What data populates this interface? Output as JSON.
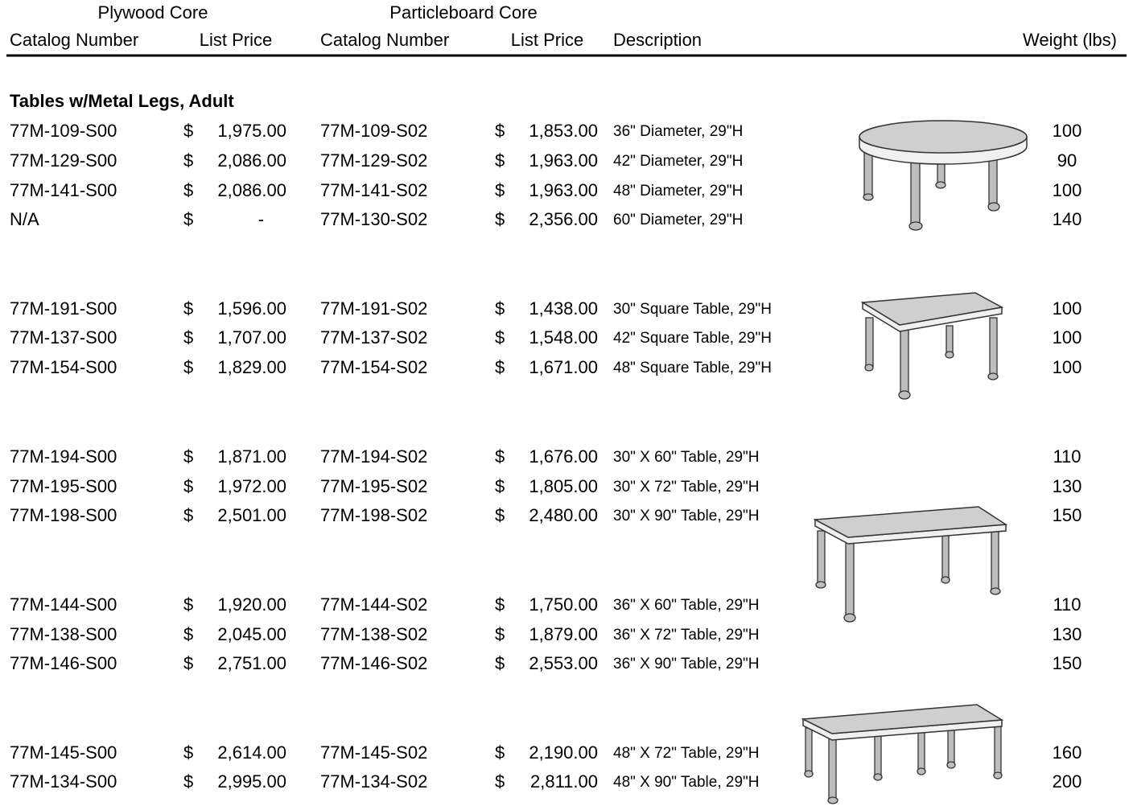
{
  "header": {
    "groups": [
      "Plywood Core",
      "Particleboard Core"
    ],
    "columns": [
      "Catalog Number",
      "List Price",
      "Catalog Number",
      "List Price",
      "Description",
      "Weight (lbs)"
    ]
  },
  "section": {
    "title": "Tables w/Metal Legs, Adult",
    "rows": [
      {
        "plywood_catalog": "77M-109-S00",
        "plywood_currency": "$",
        "plywood_price": "1,975.00",
        "particle_catalog": "77M-109-S02",
        "particle_currency": "$",
        "particle_price": "1,853.00",
        "description": "36\" Diameter, 29\"H",
        "weight": 100
      },
      {
        "plywood_catalog": "77M-129-S00",
        "plywood_currency": "$",
        "plywood_price": "2,086.00",
        "particle_catalog": "77M-129-S02",
        "particle_currency": "$",
        "particle_price": "1,963.00",
        "description": "42\" Diameter, 29\"H",
        "weight": 90
      },
      {
        "plywood_catalog": "77M-141-S00",
        "plywood_currency": "$",
        "plywood_price": "2,086.00",
        "particle_catalog": "77M-141-S02",
        "particle_currency": "$",
        "particle_price": "1,963.00",
        "description": "48\" Diameter, 29\"H",
        "weight": 100
      },
      {
        "plywood_catalog": "N/A",
        "plywood_currency": "$",
        "plywood_price": "-",
        "particle_catalog": "77M-130-S02",
        "particle_currency": "$",
        "particle_price": "2,356.00",
        "description": "60\" Diameter, 29\"H",
        "weight": 140
      },
      {
        "plywood_catalog": "77M-191-S00",
        "plywood_currency": "$",
        "plywood_price": "1,596.00",
        "particle_catalog": "77M-191-S02",
        "particle_currency": "$",
        "particle_price": "1,438.00",
        "description": "30\" Square Table, 29\"H",
        "weight": 100
      },
      {
        "plywood_catalog": "77M-137-S00",
        "plywood_currency": "$",
        "plywood_price": "1,707.00",
        "particle_catalog": "77M-137-S02",
        "particle_currency": "$",
        "particle_price": "1,548.00",
        "description": "42\" Square Table, 29\"H",
        "weight": 100
      },
      {
        "plywood_catalog": "77M-154-S00",
        "plywood_currency": "$",
        "plywood_price": "1,829.00",
        "particle_catalog": "77M-154-S02",
        "particle_currency": "$",
        "particle_price": "1,671.00",
        "description": "48\" Square Table, 29\"H",
        "weight": 100
      },
      {
        "plywood_catalog": "77M-194-S00",
        "plywood_currency": "$",
        "plywood_price": "1,871.00",
        "particle_catalog": "77M-194-S02",
        "particle_currency": "$",
        "particle_price": "1,676.00",
        "description": "30\" X 60\" Table, 29\"H",
        "weight": 110
      },
      {
        "plywood_catalog": "77M-195-S00",
        "plywood_currency": "$",
        "plywood_price": "1,972.00",
        "particle_catalog": "77M-195-S02",
        "particle_currency": "$",
        "particle_price": "1,805.00",
        "description": "30\" X 72\" Table, 29\"H",
        "weight": 130
      },
      {
        "plywood_catalog": "77M-198-S00",
        "plywood_currency": "$",
        "plywood_price": "2,501.00",
        "particle_catalog": "77M-198-S02",
        "particle_currency": "$",
        "particle_price": "2,480.00",
        "description": "30\" X 90\" Table, 29\"H",
        "weight": 150
      },
      {
        "plywood_catalog": "77M-144-S00",
        "plywood_currency": "$",
        "plywood_price": "1,920.00",
        "particle_catalog": "77M-144-S02",
        "particle_currency": "$",
        "particle_price": "1,750.00",
        "description": "36\" X 60\" Table, 29\"H",
        "weight": 110
      },
      {
        "plywood_catalog": "77M-138-S00",
        "plywood_currency": "$",
        "plywood_price": "2,045.00",
        "particle_catalog": "77M-138-S02",
        "particle_currency": "$",
        "particle_price": "1,879.00",
        "description": "36\" X 72\" Table, 29\"H",
        "weight": 130
      },
      {
        "plywood_catalog": "77M-146-S00",
        "plywood_currency": "$",
        "plywood_price": "2,751.00",
        "particle_catalog": "77M-146-S02",
        "particle_currency": "$",
        "particle_price": "2,553.00",
        "description": "36\" X 90\" Table, 29\"H",
        "weight": 150
      },
      {
        "plywood_catalog": "77M-145-S00",
        "plywood_currency": "$",
        "plywood_price": "2,614.00",
        "particle_catalog": "77M-145-S02",
        "particle_currency": "$",
        "particle_price": "2,190.00",
        "description": "48\" X 72\" Table, 29\"H",
        "weight": 160
      },
      {
        "plywood_catalog": "77M-134-S00",
        "plywood_currency": "$",
        "plywood_price": "2,995.00",
        "particle_catalog": "77M-134-S02",
        "particle_currency": "$",
        "particle_price": "2,811.00",
        "description": "48\" X 90\" Table, 29\"H",
        "weight": 200
      }
    ]
  }
}
